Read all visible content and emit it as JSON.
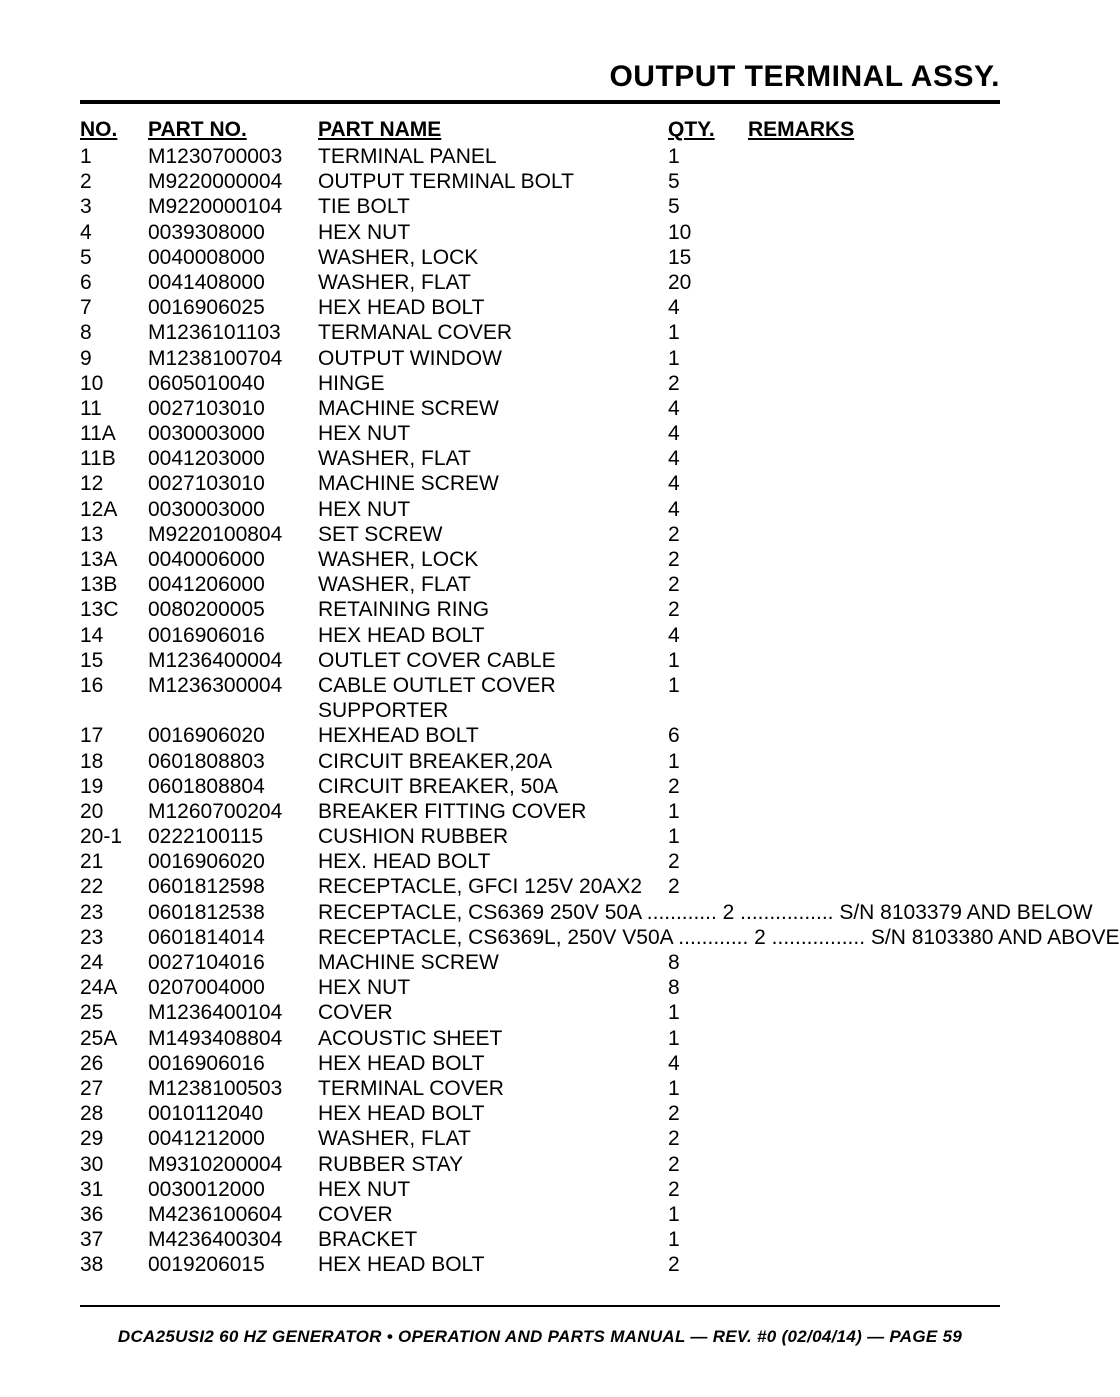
{
  "title": "OUTPUT TERMINAL ASSY.",
  "headers": {
    "no": "NO.",
    "partno": "PART NO.",
    "name": "PART NAME",
    "qty": "QTY.",
    "remarks": "REMARKS"
  },
  "rows": [
    {
      "no": "1",
      "pn": "M1230700003",
      "name": "TERMINAL PANEL",
      "qty": "1",
      "remarks": ""
    },
    {
      "no": "2",
      "pn": "M9220000004",
      "name": "OUTPUT TERMINAL BOLT",
      "qty": "5",
      "remarks": ""
    },
    {
      "no": "3",
      "pn": "M9220000104",
      "name": "TIE BOLT",
      "qty": "5",
      "remarks": ""
    },
    {
      "no": "4",
      "pn": "0039308000",
      "name": "HEX NUT",
      "qty": "10",
      "remarks": ""
    },
    {
      "no": "5",
      "pn": "0040008000",
      "name": "WASHER, LOCK",
      "qty": "15",
      "remarks": ""
    },
    {
      "no": "6",
      "pn": "0041408000",
      "name": "WASHER, FLAT",
      "qty": "20",
      "remarks": ""
    },
    {
      "no": "7",
      "pn": "0016906025",
      "name": "HEX HEAD BOLT",
      "qty": "4",
      "remarks": ""
    },
    {
      "no": "8",
      "pn": "M1236101103",
      "name": "TERMANAL COVER",
      "qty": "1",
      "remarks": ""
    },
    {
      "no": "9",
      "pn": "M1238100704",
      "name": "OUTPUT WINDOW",
      "qty": "1",
      "remarks": ""
    },
    {
      "no": "10",
      "pn": "0605010040",
      "name": "HINGE",
      "qty": "2",
      "remarks": ""
    },
    {
      "no": "11",
      "pn": "0027103010",
      "name": "MACHINE SCREW",
      "qty": "4",
      "remarks": ""
    },
    {
      "no": "11A",
      "pn": "0030003000",
      "name": "HEX NUT",
      "qty": "4",
      "remarks": ""
    },
    {
      "no": "11B",
      "pn": "0041203000",
      "name": "WASHER, FLAT",
      "qty": "4",
      "remarks": ""
    },
    {
      "no": "12",
      "pn": "0027103010",
      "name": "MACHINE SCREW",
      "qty": "4",
      "remarks": ""
    },
    {
      "no": "12A",
      "pn": "0030003000",
      "name": "HEX NUT",
      "qty": "4",
      "remarks": ""
    },
    {
      "no": "13",
      "pn": "M9220100804",
      "name": "SET SCREW",
      "qty": "2",
      "remarks": ""
    },
    {
      "no": "13A",
      "pn": "0040006000",
      "name": "WASHER, LOCK",
      "qty": "2",
      "remarks": ""
    },
    {
      "no": "13B",
      "pn": "0041206000",
      "name": "WASHER, FLAT",
      "qty": "2",
      "remarks": ""
    },
    {
      "no": "13C",
      "pn": "0080200005",
      "name": "RETAINING RING",
      "qty": "2",
      "remarks": ""
    },
    {
      "no": "14",
      "pn": "0016906016",
      "name": "HEX HEAD BOLT",
      "qty": "4",
      "remarks": ""
    },
    {
      "no": "15",
      "pn": "M1236400004",
      "name": "OUTLET COVER CABLE",
      "qty": "1",
      "remarks": ""
    },
    {
      "no": "16",
      "pn": "M1236300004",
      "name": "CABLE OUTLET COVER SUPPORTER",
      "qty": "1",
      "remarks": ""
    },
    {
      "no": "17",
      "pn": "0016906020",
      "name": "HEXHEAD BOLT",
      "qty": "6",
      "remarks": ""
    },
    {
      "no": "18",
      "pn": "0601808803",
      "name": "CIRCUIT BREAKER,20A",
      "qty": "1",
      "remarks": ""
    },
    {
      "no": "19",
      "pn": "0601808804",
      "name": "CIRCUIT BREAKER, 50A",
      "qty": "2",
      "remarks": ""
    },
    {
      "no": "20",
      "pn": "M1260700204",
      "name": "BREAKER FITTING COVER",
      "qty": "1",
      "remarks": ""
    },
    {
      "no": "20-1",
      "pn": "0222100115",
      "name": "CUSHION RUBBER",
      "qty": "1",
      "remarks": ""
    },
    {
      "no": "21",
      "pn": "0016906020",
      "name": "HEX. HEAD BOLT",
      "qty": "2",
      "remarks": ""
    },
    {
      "no": "22",
      "pn": "0601812598",
      "name": "RECEPTACLE, GFCI 125V 20AX2",
      "qty": "2",
      "remarks": ""
    },
    {
      "no": "23",
      "pn": "0601812538",
      "name": "RECEPTACLE, CS6369 250V 50A",
      "qty": "2",
      "remarks": "S/N 8103379 AND BELOW",
      "dotted": true
    },
    {
      "no": "23",
      "pn": "0601814014",
      "name": "RECEPTACLE, CS6369L, 250V V50A",
      "qty": "2",
      "remarks": "S/N 8103380 AND ABOVE",
      "dotted": true
    },
    {
      "no": "24",
      "pn": "0027104016",
      "name": "MACHINE SCREW",
      "qty": "8",
      "remarks": ""
    },
    {
      "no": "24A",
      "pn": "0207004000",
      "name": "HEX NUT",
      "qty": "8",
      "remarks": ""
    },
    {
      "no": "25",
      "pn": "M1236400104",
      "name": "COVER",
      "qty": "1",
      "remarks": ""
    },
    {
      "no": "25A",
      "pn": "M1493408804",
      "name": "ACOUSTIC SHEET",
      "qty": "1",
      "remarks": ""
    },
    {
      "no": "26",
      "pn": "0016906016",
      "name": "HEX HEAD BOLT",
      "qty": "4",
      "remarks": ""
    },
    {
      "no": "27",
      "pn": "M1238100503",
      "name": "TERMINAL COVER",
      "qty": "1",
      "remarks": ""
    },
    {
      "no": "28",
      "pn": "0010112040",
      "name": "HEX HEAD BOLT",
      "qty": "2",
      "remarks": ""
    },
    {
      "no": "29",
      "pn": "0041212000",
      "name": "WASHER, FLAT",
      "qty": "2",
      "remarks": ""
    },
    {
      "no": "30",
      "pn": "M9310200004",
      "name": "RUBBER STAY",
      "qty": "2",
      "remarks": ""
    },
    {
      "no": "31",
      "pn": "0030012000",
      "name": "HEX NUT",
      "qty": "2",
      "remarks": ""
    },
    {
      "no": "36",
      "pn": "M4236100604",
      "name": "COVER",
      "qty": "1",
      "remarks": ""
    },
    {
      "no": "37",
      "pn": "M4236400304",
      "name": "BRACKET",
      "qty": "1",
      "remarks": ""
    },
    {
      "no": "38",
      "pn": "0019206015",
      "name": "HEX HEAD BOLT",
      "qty": "2",
      "remarks": ""
    }
  ],
  "footer": "DCA25USI2 60 HZ GENERATOR • OPERATION AND PARTS MANUAL — REV. #0 (02/04/14) — PAGE 59",
  "style": {
    "background_color": "#ffffff",
    "text_color": "#000000",
    "title_fontsize": 30,
    "title_weight": 900,
    "body_fontsize": 21,
    "footer_fontsize": 17,
    "hr_color": "#000000",
    "col_widths": {
      "no": 68,
      "partno": 170,
      "name": 350,
      "qty": 80
    }
  }
}
